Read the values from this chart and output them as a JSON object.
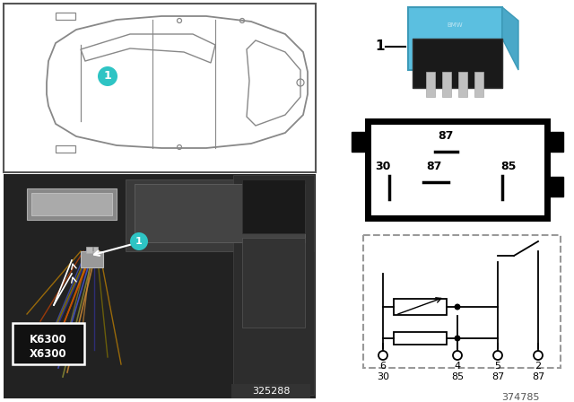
{
  "bg_color": "#ffffff",
  "teal_color": "#2ec4c4",
  "car_line_color": "#888888",
  "car_box_color": "#444444",
  "photo_bg": "#1c1c1c",
  "relay_blue": "#5bbfe0",
  "relay_dark": "#2a2a2a",
  "pin_box_border": "#111111",
  "circuit_dash_color": "#888888",
  "k_label": "K6300",
  "x_label": "X6300",
  "image_num": "325288",
  "ref_num": "374785",
  "pin_top_label": "87",
  "pin_mid_left": "30",
  "pin_mid_center": "87",
  "pin_mid_right": "85",
  "circuit_pins_num": [
    "6",
    "4",
    "5",
    "2"
  ],
  "circuit_pins_label": [
    "30",
    "85",
    "87",
    "87"
  ]
}
